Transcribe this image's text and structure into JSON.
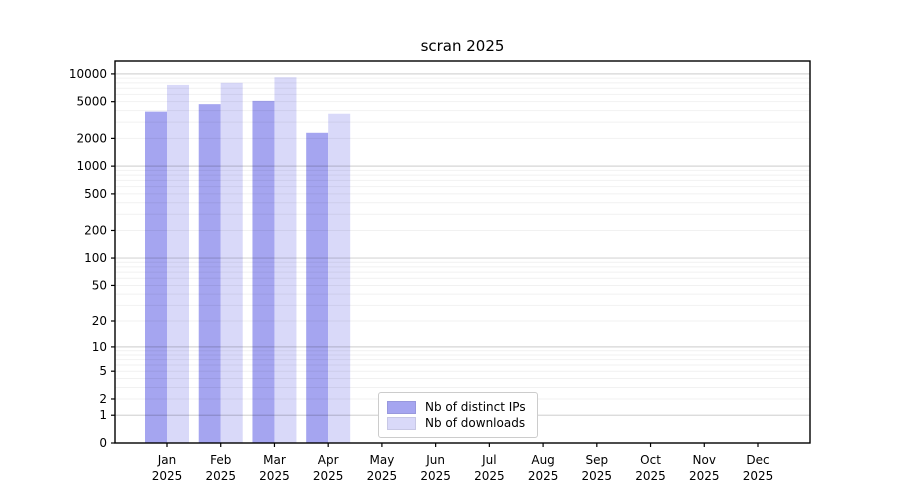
{
  "chart_data": {
    "type": "bar",
    "title": "scran 2025",
    "categories": [
      "Jan",
      "Feb",
      "Mar",
      "Apr",
      "May",
      "Jun",
      "Jul",
      "Aug",
      "Sep",
      "Oct",
      "Nov",
      "Dec"
    ],
    "category_year": "2025",
    "series": [
      {
        "name": "Nb of distinct IPs",
        "color": "#a5a5f0",
        "values": [
          3900,
          4700,
          5100,
          2300,
          null,
          null,
          null,
          null,
          null,
          null,
          null,
          null
        ]
      },
      {
        "name": "Nb of downloads",
        "color": "#d9d9f9",
        "values": [
          7600,
          8000,
          9200,
          3700,
          null,
          null,
          null,
          null,
          null,
          null,
          null,
          null
        ]
      }
    ],
    "y_axis": {
      "scale": "log10(value+1)",
      "ticks": [
        0,
        1,
        2,
        5,
        10,
        20,
        50,
        100,
        200,
        500,
        1000,
        2000,
        5000,
        10000
      ],
      "top_value": 13800,
      "major_gridline_values": [
        1,
        10,
        100,
        1000,
        10000
      ],
      "minor_gridline_multiples": [
        2,
        3,
        4,
        5,
        6,
        7,
        8,
        9
      ]
    },
    "x_axis": {
      "label_line2": "2025"
    },
    "legend": {
      "position": "lower center"
    },
    "colors": {
      "axis": "#000000",
      "major_grid": "rgba(0,0,0,0.16)",
      "minor_grid": "rgba(0,0,0,0.055)",
      "text": "#000000",
      "background": "#ffffff"
    }
  }
}
